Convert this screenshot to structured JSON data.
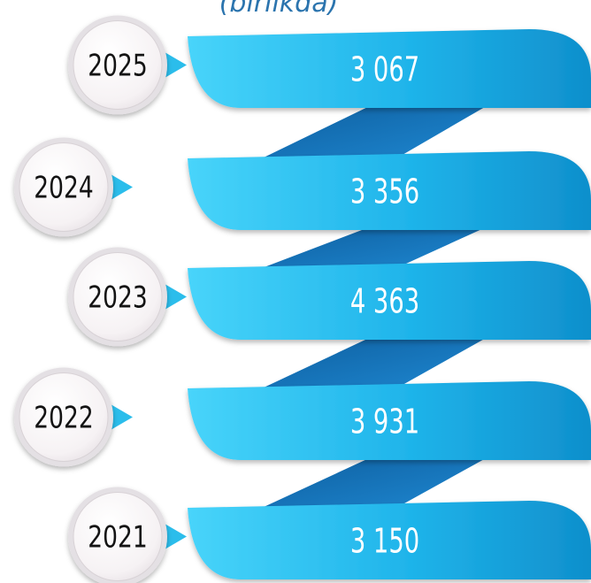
{
  "subtitle": "(birlikda)",
  "colors": {
    "banner_light": "#48D4FA",
    "banner_dark": "#0F8FCC",
    "connector": "#1577C0",
    "pointer": "#2BBDEB",
    "badge_ring": "#E4E0E4",
    "text_dark": "#141414",
    "text_light": "#ffffff"
  },
  "chart_data": {
    "type": "bar",
    "title": "",
    "subtitle": "(birlikda)",
    "categories": [
      "2025",
      "2024",
      "2023",
      "2022",
      "2021"
    ],
    "values": [
      3067,
      3356,
      4363,
      3931,
      3150
    ],
    "value_labels": [
      "3 067",
      "3 356",
      "4 363",
      "3 931",
      "3 150"
    ]
  }
}
